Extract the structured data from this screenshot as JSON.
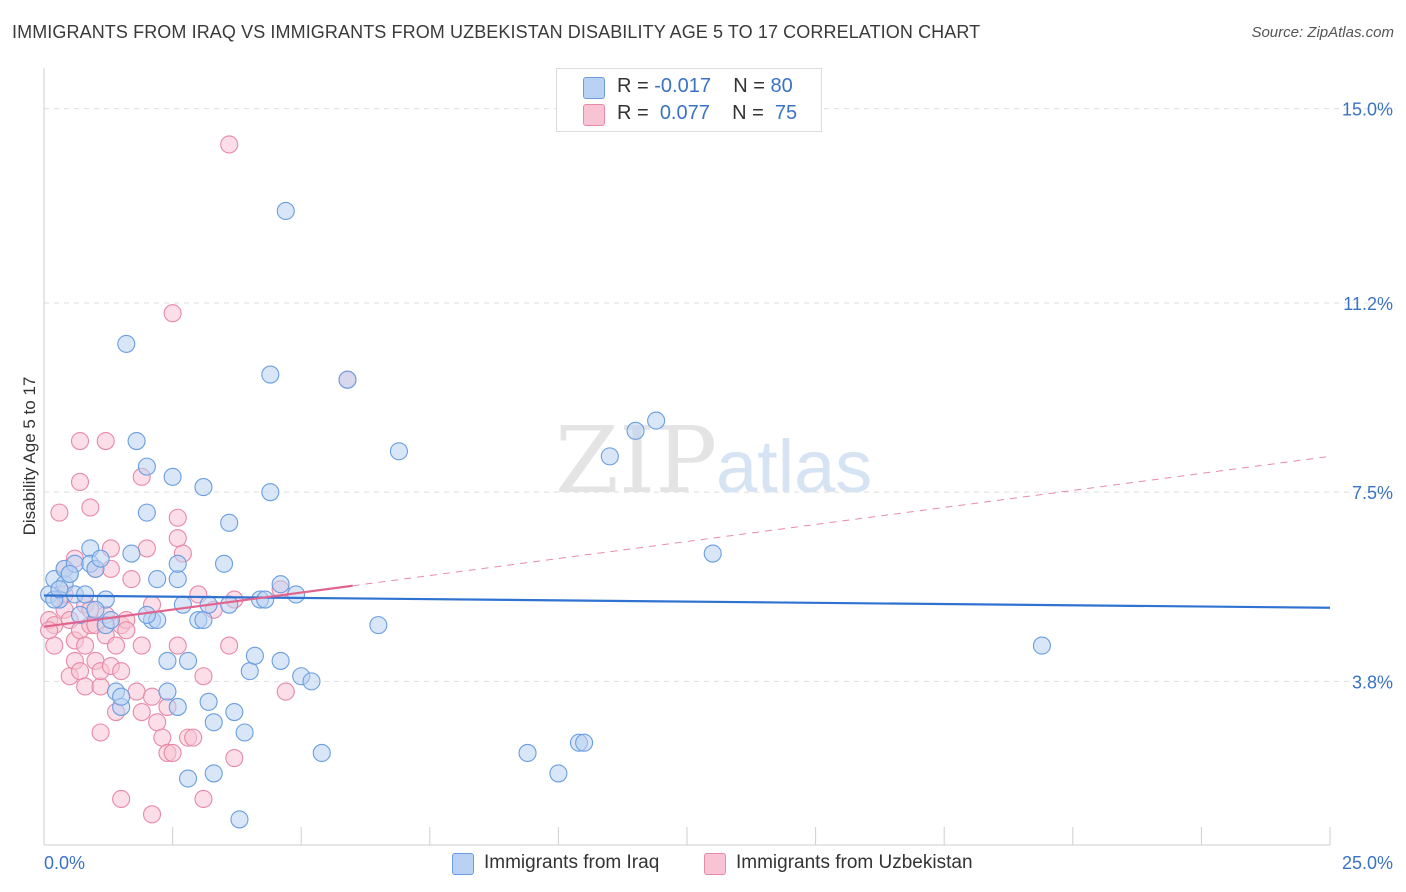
{
  "title": "IMMIGRANTS FROM IRAQ VS IMMIGRANTS FROM UZBEKISTAN DISABILITY AGE 5 TO 17 CORRELATION CHART",
  "source": "Source: ZipAtlas.com",
  "watermark": {
    "zip": "ZIP",
    "atlas": "atlas"
  },
  "legend": {
    "iraq": {
      "r_label": "R =",
      "r_value": "-0.017",
      "n_label": "N =",
      "n_value": "80"
    },
    "uzbekistan": {
      "r_label": "R =",
      "r_value": "0.077",
      "n_label": "N =",
      "n_value": "75"
    }
  },
  "bottom_legend": {
    "iraq": "Immigrants from Iraq",
    "uzbekistan": "Immigrants from Uzbekistan"
  },
  "colors": {
    "iraq_fill": "#b9d2f3",
    "iraq_stroke": "#6a9ee0",
    "iraq_line": "#2f72d0",
    "uzb_fill": "#f8c3d3",
    "uzb_stroke": "#e889a7",
    "uzb_line": "#e0648e",
    "tick_label": "#3b73c4",
    "grid": "#dedede"
  },
  "chart_data": {
    "type": "scatter",
    "title": "IMMIGRANTS FROM IRAQ VS IMMIGRANTS FROM UZBEKISTAN DISABILITY AGE 5 TO 17 CORRELATION CHART",
    "xlabel": "",
    "ylabel": "Disability Age 5 to 17",
    "xlim": [
      0,
      25
    ],
    "ylim": [
      0.6,
      15.6
    ],
    "x_tick_labels": [
      "0.0%",
      "25.0%"
    ],
    "y_ticks": [
      3.8,
      7.5,
      11.2,
      15.0
    ],
    "y_tick_labels": [
      "3.8%",
      "7.5%",
      "11.2%",
      "15.0%"
    ],
    "series": [
      {
        "name": "Immigrants from Iraq",
        "trend": {
          "x": [
            0,
            25
          ],
          "y": [
            5.48,
            5.24
          ]
        },
        "points": [
          [
            0.1,
            5.5
          ],
          [
            0.2,
            5.8
          ],
          [
            0.3,
            5.4
          ],
          [
            0.4,
            5.7
          ],
          [
            0.4,
            6.0
          ],
          [
            0.5,
            5.9
          ],
          [
            0.6,
            5.5
          ],
          [
            0.6,
            6.1
          ],
          [
            0.7,
            5.1
          ],
          [
            0.8,
            5.5
          ],
          [
            0.9,
            6.4
          ],
          [
            0.9,
            6.1
          ],
          [
            1.0,
            6.0
          ],
          [
            1.1,
            6.2
          ],
          [
            1.2,
            5.4
          ],
          [
            1.2,
            4.9
          ],
          [
            1.4,
            3.6
          ],
          [
            1.5,
            3.3
          ],
          [
            1.5,
            3.5
          ],
          [
            1.6,
            10.4
          ],
          [
            1.7,
            6.3
          ],
          [
            1.8,
            8.5
          ],
          [
            2.0,
            8.0
          ],
          [
            2.0,
            7.1
          ],
          [
            2.1,
            5.0
          ],
          [
            2.2,
            5.8
          ],
          [
            2.2,
            5.0
          ],
          [
            2.4,
            4.2
          ],
          [
            2.4,
            3.6
          ],
          [
            2.6,
            3.3
          ],
          [
            2.5,
            7.8
          ],
          [
            2.6,
            5.8
          ],
          [
            2.6,
            6.1
          ],
          [
            2.7,
            5.3
          ],
          [
            2.8,
            1.9
          ],
          [
            2.8,
            4.2
          ],
          [
            3.0,
            5.0
          ],
          [
            3.1,
            5.0
          ],
          [
            3.1,
            7.6
          ],
          [
            3.2,
            3.4
          ],
          [
            3.3,
            3.0
          ],
          [
            3.3,
            2.0
          ],
          [
            3.5,
            6.1
          ],
          [
            3.6,
            5.3
          ],
          [
            3.6,
            6.9
          ],
          [
            3.7,
            3.2
          ],
          [
            3.8,
            1.1
          ],
          [
            3.9,
            2.8
          ],
          [
            4.0,
            4.0
          ],
          [
            4.1,
            4.3
          ],
          [
            4.2,
            5.4
          ],
          [
            4.3,
            5.4
          ],
          [
            4.4,
            9.8
          ],
          [
            4.4,
            7.5
          ],
          [
            4.6,
            5.7
          ],
          [
            4.6,
            4.2
          ],
          [
            4.7,
            13.0
          ],
          [
            4.9,
            5.5
          ],
          [
            5.0,
            3.9
          ],
          [
            5.2,
            3.8
          ],
          [
            5.4,
            2.4
          ],
          [
            5.9,
            9.7
          ],
          [
            6.5,
            4.9
          ],
          [
            6.9,
            8.3
          ],
          [
            9.4,
            2.4
          ],
          [
            10.0,
            2.0
          ],
          [
            10.4,
            2.6
          ],
          [
            10.5,
            2.6
          ],
          [
            11.0,
            8.2
          ],
          [
            11.5,
            8.7
          ],
          [
            11.9,
            8.9
          ],
          [
            13.0,
            6.3
          ],
          [
            19.4,
            4.5
          ],
          [
            0.2,
            5.4
          ],
          [
            0.5,
            5.9
          ],
          [
            0.3,
            5.6
          ],
          [
            1.0,
            5.2
          ],
          [
            1.3,
            5.0
          ],
          [
            2.0,
            5.1
          ],
          [
            3.2,
            5.3
          ]
        ]
      },
      {
        "name": "Immigrants from Uzbekistan",
        "trend_solid": {
          "x": [
            0,
            6.0
          ],
          "y": [
            4.87,
            5.67
          ]
        },
        "trend_dashed": {
          "x": [
            6.0,
            25
          ],
          "y": [
            5.67,
            8.2
          ]
        },
        "points": [
          [
            0.1,
            5.0
          ],
          [
            0.2,
            4.9
          ],
          [
            0.2,
            4.5
          ],
          [
            0.3,
            5.4
          ],
          [
            0.3,
            7.1
          ],
          [
            0.4,
            5.2
          ],
          [
            0.4,
            5.5
          ],
          [
            0.5,
            5.0
          ],
          [
            0.5,
            3.9
          ],
          [
            0.6,
            4.6
          ],
          [
            0.6,
            6.2
          ],
          [
            0.6,
            4.2
          ],
          [
            0.7,
            4.0
          ],
          [
            0.7,
            4.8
          ],
          [
            0.7,
            8.5
          ],
          [
            0.7,
            7.7
          ],
          [
            0.8,
            5.3
          ],
          [
            0.8,
            4.5
          ],
          [
            0.8,
            3.7
          ],
          [
            0.9,
            5.2
          ],
          [
            0.9,
            4.9
          ],
          [
            0.9,
            7.2
          ],
          [
            1.0,
            6.0
          ],
          [
            1.0,
            4.9
          ],
          [
            1.0,
            4.2
          ],
          [
            1.1,
            3.7
          ],
          [
            1.1,
            2.8
          ],
          [
            1.1,
            4.0
          ],
          [
            1.2,
            5.1
          ],
          [
            1.2,
            4.7
          ],
          [
            1.3,
            6.0
          ],
          [
            1.3,
            4.1
          ],
          [
            1.2,
            8.5
          ],
          [
            1.3,
            6.4
          ],
          [
            1.4,
            4.5
          ],
          [
            1.4,
            3.2
          ],
          [
            1.5,
            4.9
          ],
          [
            1.5,
            4.0
          ],
          [
            1.5,
            1.5
          ],
          [
            1.6,
            5.0
          ],
          [
            1.7,
            5.8
          ],
          [
            1.8,
            3.6
          ],
          [
            1.9,
            4.5
          ],
          [
            1.9,
            3.2
          ],
          [
            1.9,
            7.8
          ],
          [
            2.0,
            6.4
          ],
          [
            2.1,
            5.3
          ],
          [
            2.1,
            3.5
          ],
          [
            2.1,
            1.2
          ],
          [
            2.2,
            3.0
          ],
          [
            2.3,
            2.7
          ],
          [
            2.4,
            2.4
          ],
          [
            2.4,
            3.3
          ],
          [
            2.5,
            2.4
          ],
          [
            2.5,
            11.0
          ],
          [
            2.6,
            7.0
          ],
          [
            2.6,
            6.6
          ],
          [
            2.6,
            4.5
          ],
          [
            2.7,
            6.3
          ],
          [
            2.8,
            2.7
          ],
          [
            2.9,
            2.7
          ],
          [
            3.0,
            5.5
          ],
          [
            3.1,
            3.9
          ],
          [
            3.1,
            1.5
          ],
          [
            3.3,
            5.2
          ],
          [
            3.6,
            4.5
          ],
          [
            3.7,
            5.4
          ],
          [
            3.7,
            2.3
          ],
          [
            3.6,
            14.3
          ],
          [
            4.6,
            5.6
          ],
          [
            4.7,
            3.6
          ],
          [
            5.9,
            9.7
          ],
          [
            0.1,
            4.8
          ],
          [
            1.6,
            4.8
          ],
          [
            0.4,
            6.0
          ]
        ]
      }
    ]
  }
}
